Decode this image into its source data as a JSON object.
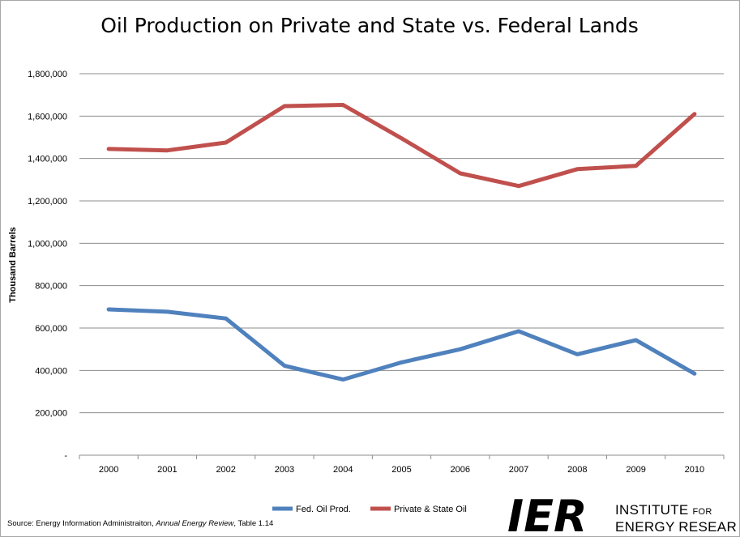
{
  "chart_data": {
    "type": "line",
    "title": "Oil Production on Private and State vs. Federal Lands",
    "xlabel": "",
    "ylabel": "Thousand Barrels",
    "categories": [
      "2000",
      "2001",
      "2002",
      "2003",
      "2004",
      "2005",
      "2006",
      "2007",
      "2008",
      "2009",
      "2010"
    ],
    "ylim": [
      0,
      1800000
    ],
    "yticks": [
      0,
      200000,
      400000,
      600000,
      800000,
      1000000,
      1200000,
      1400000,
      1600000,
      1800000
    ],
    "ytick_labels": [
      "-",
      "200,000",
      "400,000",
      "600,000",
      "800,000",
      "1,000,000",
      "1,200,000",
      "1,400,000",
      "1,600,000",
      "1,800,000"
    ],
    "grid": true,
    "legend_position": "bottom",
    "series": [
      {
        "name": "Fed. Oil Prod.",
        "color": "#4f81bd",
        "values": [
          688000,
          677000,
          645000,
          422000,
          357000,
          438000,
          500000,
          585000,
          476000,
          543000,
          385000
        ]
      },
      {
        "name": "Private & State Oil",
        "color": "#c0504d",
        "values": [
          1445000,
          1438000,
          1475000,
          1647000,
          1653000,
          1495000,
          1330000,
          1270000,
          1350000,
          1365000,
          1610000
        ]
      }
    ]
  },
  "source": {
    "prefix": "Source: Energy Information Administraiton, ",
    "italic": "Annual Energy Review",
    "suffix": ", Table 1.14"
  },
  "logo": {
    "mark": "IER",
    "line1_big": "INSTITUTE",
    "line1_small": "FOR",
    "line2": "ENERGY RESEARCH"
  }
}
